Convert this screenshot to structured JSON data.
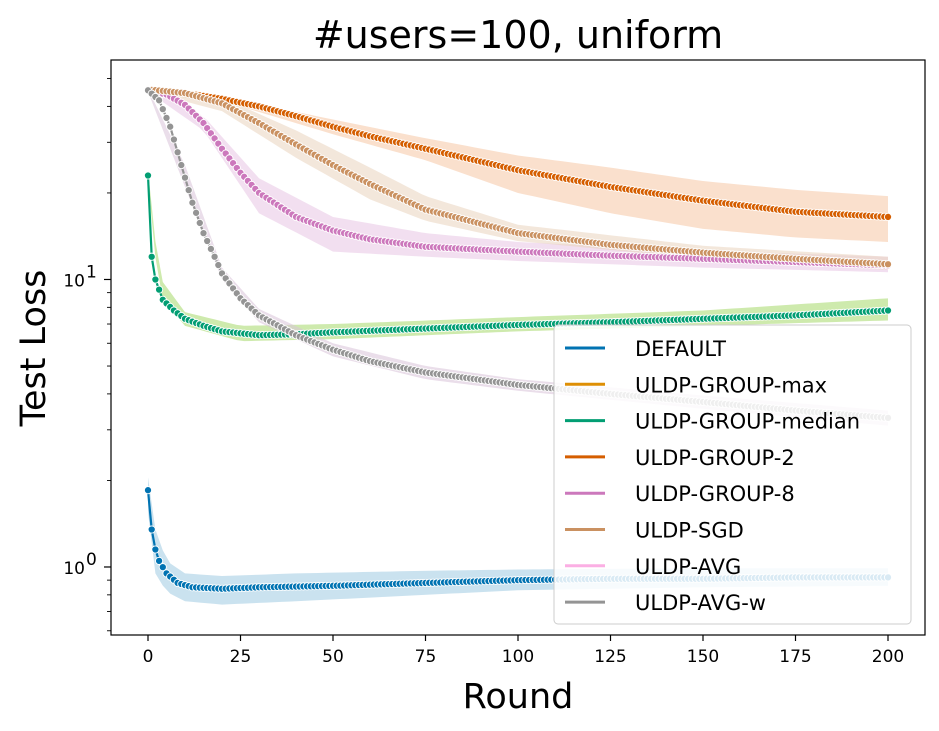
{
  "chart_data": {
    "type": "line",
    "title": "#users=100, uniform",
    "xlabel": "Round",
    "ylabel": "Test Loss",
    "xlim": [
      -10,
      210
    ],
    "ylim": [
      0.58,
      58
    ],
    "yscale": "log",
    "x_ticks": [
      0,
      25,
      50,
      75,
      100,
      125,
      150,
      175,
      200
    ],
    "y_ticks": [
      {
        "value": 1,
        "label": "10",
        "sup": "0"
      },
      {
        "value": 10,
        "label": "10",
        "sup": "1"
      }
    ],
    "grid": false,
    "legend_position": "lower-right",
    "series": [
      {
        "name": "DEFAULT",
        "color": "#0173b2",
        "band": "#9ecae1",
        "points": [
          [
            0,
            1.85
          ],
          [
            1,
            1.35
          ],
          [
            2,
            1.15
          ],
          [
            3,
            1.05
          ],
          [
            5,
            0.95
          ],
          [
            8,
            0.88
          ],
          [
            12,
            0.85
          ],
          [
            20,
            0.84
          ],
          [
            30,
            0.85
          ],
          [
            50,
            0.86
          ],
          [
            75,
            0.88
          ],
          [
            100,
            0.9
          ],
          [
            125,
            0.91
          ],
          [
            150,
            0.91
          ],
          [
            175,
            0.92
          ],
          [
            200,
            0.92
          ]
        ],
        "band_points": [
          [
            0,
            1.55,
            2.05
          ],
          [
            2,
            0.95,
            1.35
          ],
          [
            5,
            0.82,
            1.05
          ],
          [
            10,
            0.76,
            0.95
          ],
          [
            20,
            0.74,
            0.93
          ],
          [
            40,
            0.76,
            0.95
          ],
          [
            75,
            0.8,
            0.97
          ],
          [
            100,
            0.83,
            0.98
          ],
          [
            150,
            0.85,
            0.99
          ],
          [
            200,
            0.86,
            0.99
          ]
        ]
      },
      {
        "name": "ULDP-GROUP-max",
        "color": "#de8f05",
        "band": "#fdd49e",
        "points": [
          [
            0,
            45.0
          ],
          [
            200,
            16.5
          ]
        ],
        "band_points": [],
        "hidden": true
      },
      {
        "name": "ULDP-GROUP-median",
        "color": "#029e73",
        "band": "#a6d96a",
        "points": [
          [
            0,
            23.0
          ],
          [
            1,
            12.0
          ],
          [
            2,
            10.0
          ],
          [
            4,
            8.5
          ],
          [
            7,
            7.8
          ],
          [
            10,
            7.3
          ],
          [
            15,
            6.9
          ],
          [
            20,
            6.6
          ],
          [
            30,
            6.4
          ],
          [
            40,
            6.45
          ],
          [
            50,
            6.55
          ],
          [
            75,
            6.75
          ],
          [
            100,
            6.95
          ],
          [
            125,
            7.1
          ],
          [
            150,
            7.3
          ],
          [
            175,
            7.5
          ],
          [
            200,
            7.8
          ]
        ],
        "band_points": [
          [
            0,
            22,
            24
          ],
          [
            3,
            8.8,
            10.2
          ],
          [
            10,
            6.9,
            7.7
          ],
          [
            25,
            6.1,
            6.9
          ],
          [
            50,
            6.2,
            7.0
          ],
          [
            100,
            6.6,
            7.4
          ],
          [
            150,
            6.9,
            7.8
          ],
          [
            200,
            7.2,
            8.6
          ]
        ]
      },
      {
        "name": "ULDP-GROUP-2",
        "color": "#d55e00",
        "band": "#f6c7a4",
        "points": [
          [
            0,
            45.8
          ],
          [
            10,
            44.5
          ],
          [
            20,
            42.5
          ],
          [
            30,
            40.0
          ],
          [
            40,
            37.0
          ],
          [
            50,
            34.0
          ],
          [
            60,
            31.5
          ],
          [
            75,
            28.5
          ],
          [
            100,
            24.0
          ],
          [
            125,
            21.0
          ],
          [
            150,
            18.8
          ],
          [
            175,
            17.2
          ],
          [
            200,
            16.5
          ]
        ],
        "band_points": [
          [
            0,
            45,
            46.5
          ],
          [
            25,
            40,
            42
          ],
          [
            50,
            32,
            36
          ],
          [
            75,
            26,
            31
          ],
          [
            100,
            20,
            27
          ],
          [
            125,
            17,
            24.5
          ],
          [
            150,
            15,
            22
          ],
          [
            175,
            14,
            20.5
          ],
          [
            200,
            13.5,
            19.5
          ]
        ]
      },
      {
        "name": "ULDP-GROUP-8",
        "color": "#cc78bc",
        "band": "#e8c5e3",
        "points": [
          [
            0,
            45.5
          ],
          [
            5,
            44.0
          ],
          [
            10,
            40.5
          ],
          [
            15,
            35.0
          ],
          [
            20,
            28.5
          ],
          [
            25,
            23.5
          ],
          [
            30,
            20.0
          ],
          [
            40,
            16.5
          ],
          [
            50,
            14.8
          ],
          [
            60,
            13.8
          ],
          [
            75,
            13.0
          ],
          [
            100,
            12.5
          ],
          [
            125,
            12.1
          ],
          [
            150,
            11.8
          ],
          [
            175,
            11.5
          ],
          [
            200,
            11.2
          ]
        ],
        "band_points": [
          [
            0,
            45,
            46
          ],
          [
            15,
            33,
            37
          ],
          [
            30,
            17,
            22.5
          ],
          [
            50,
            12.5,
            16.5
          ],
          [
            75,
            12,
            14.5
          ],
          [
            100,
            11.6,
            13.5
          ],
          [
            150,
            11,
            12.6
          ],
          [
            200,
            10.6,
            12
          ]
        ]
      },
      {
        "name": "ULDP-SGD",
        "color": "#ca9161",
        "band": "#ead3bd",
        "points": [
          [
            0,
            45.8
          ],
          [
            10,
            44.5
          ],
          [
            20,
            41.0
          ],
          [
            30,
            35.0
          ],
          [
            40,
            29.5
          ],
          [
            50,
            25.0
          ],
          [
            60,
            21.5
          ],
          [
            75,
            17.5
          ],
          [
            100,
            14.5
          ],
          [
            125,
            13.2
          ],
          [
            150,
            12.4
          ],
          [
            175,
            11.8
          ],
          [
            200,
            11.3
          ]
        ],
        "band_points": [
          [
            0,
            45,
            46.5
          ],
          [
            20,
            38.5,
            43
          ],
          [
            40,
            26.5,
            33
          ],
          [
            60,
            19,
            24.5
          ],
          [
            75,
            16,
            19.5
          ],
          [
            100,
            13.6,
            15.5
          ],
          [
            150,
            11.8,
            13.1
          ],
          [
            200,
            10.8,
            12
          ]
        ]
      },
      {
        "name": "ULDP-AVG",
        "color": "#fbafe4",
        "band": "#fbd6f0",
        "points": [
          [
            0,
            45.0
          ],
          [
            200,
            3.3
          ]
        ],
        "band_points": [],
        "hidden": true
      },
      {
        "name": "ULDP-AVG-w",
        "color": "#949494",
        "band": "#d9c3d9",
        "points": [
          [
            0,
            45.5
          ],
          [
            3,
            42.0
          ],
          [
            6,
            34.0
          ],
          [
            9,
            25.0
          ],
          [
            12,
            18.5
          ],
          [
            15,
            14.5
          ],
          [
            18,
            12.0
          ],
          [
            20,
            10.5
          ],
          [
            25,
            8.6
          ],
          [
            30,
            7.5
          ],
          [
            40,
            6.4
          ],
          [
            50,
            5.7
          ],
          [
            60,
            5.2
          ],
          [
            75,
            4.75
          ],
          [
            100,
            4.3
          ],
          [
            125,
            4.0
          ],
          [
            150,
            3.75
          ],
          [
            175,
            3.5
          ],
          [
            200,
            3.3
          ]
        ],
        "band_points": [
          [
            0,
            45,
            46
          ],
          [
            10,
            21,
            25
          ],
          [
            20,
            10,
            11
          ],
          [
            30,
            7.1,
            7.9
          ],
          [
            50,
            5.4,
            6.0
          ],
          [
            75,
            4.5,
            5.0
          ],
          [
            100,
            4.1,
            4.5
          ],
          [
            150,
            3.55,
            3.95
          ],
          [
            200,
            3.1,
            3.5
          ]
        ]
      }
    ]
  }
}
